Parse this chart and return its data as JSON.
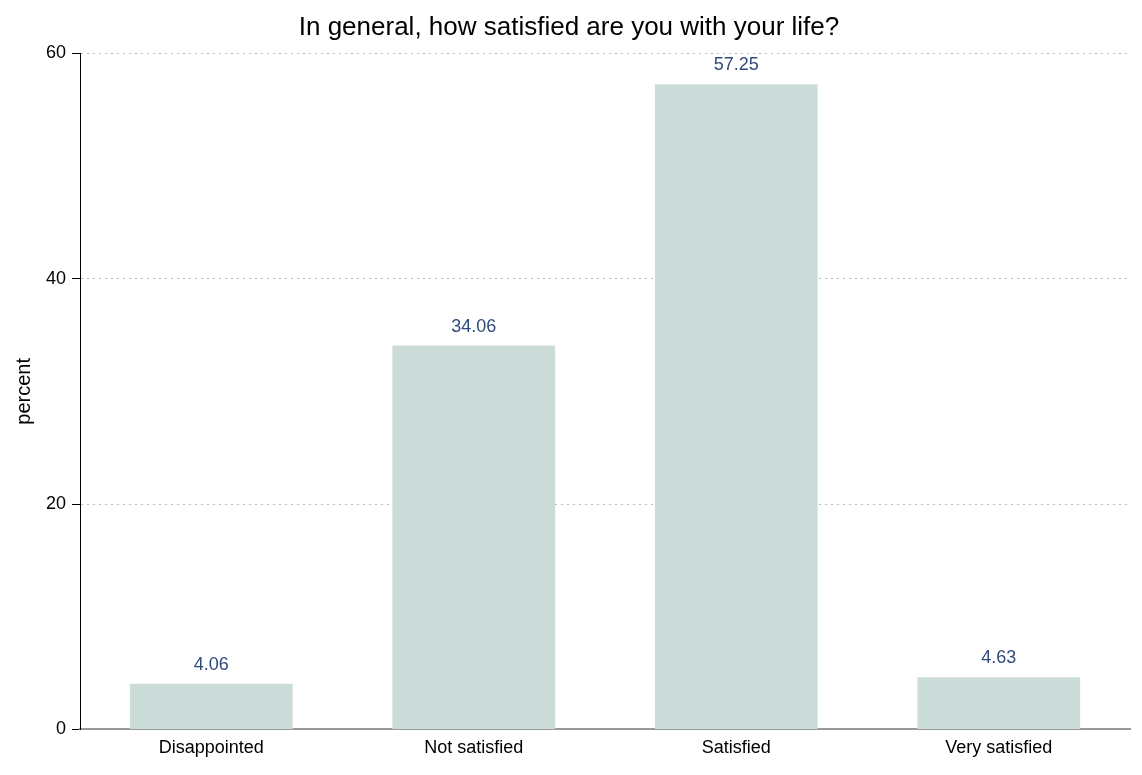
{
  "chart_data": {
    "type": "bar",
    "title": "In general, how satisfied are you with your life?",
    "ylabel": "percent",
    "categories": [
      "Disappointed",
      "Not satisfied",
      "Satisfied",
      "Very satisfied"
    ],
    "values": [
      4.06,
      34.06,
      57.25,
      4.63
    ],
    "color": "#cbdcd9",
    "ylim": [
      0,
      60
    ],
    "yticks": [
      0,
      20,
      40,
      60
    ],
    "grid": "y",
    "data_labels": true,
    "legend": false
  }
}
